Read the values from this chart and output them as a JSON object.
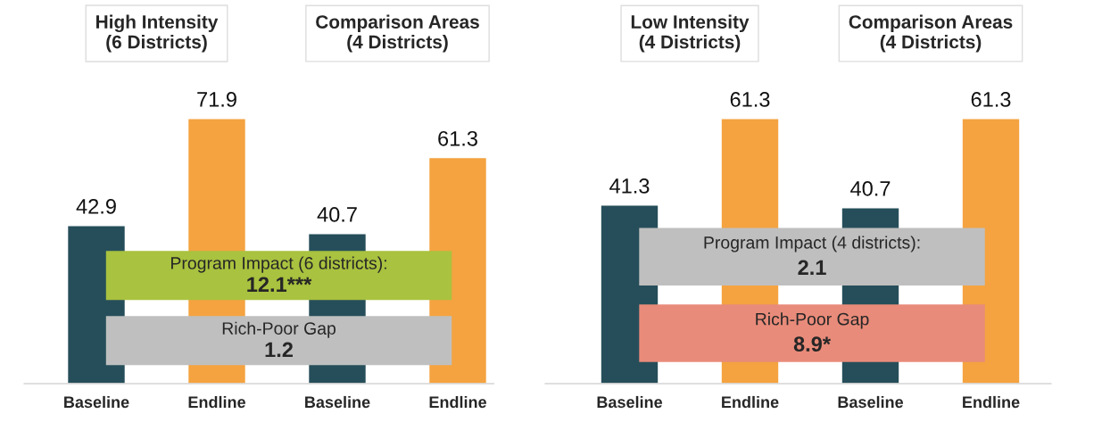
{
  "chart_data": [
    {
      "type": "bar",
      "categories": [
        "Baseline",
        "Endline",
        "Baseline",
        "Endline"
      ],
      "values": [
        42.9,
        71.9,
        40.7,
        61.3
      ],
      "colors": [
        "#264e5a",
        "#f4a340",
        "#264e5a",
        "#f4a340"
      ],
      "data_labels": true,
      "grid": false,
      "legend": false,
      "annotations": [
        "High Intensity\n(6 Districts)",
        "Comparison Areas\n(4 Districts)",
        "Program Impact (6 districts):",
        "12.1***",
        "Rich-Poor Gap",
        "1.2"
      ]
    },
    {
      "type": "bar",
      "categories": [
        "Baseline",
        "Endline",
        "Baseline",
        "Endline"
      ],
      "values": [
        41.3,
        61.3,
        40.7,
        61.3
      ],
      "colors": [
        "#264e5a",
        "#f4a340",
        "#264e5a",
        "#f4a340"
      ],
      "data_labels": true,
      "grid": false,
      "legend": false,
      "annotations": [
        "Low Intensity\n(4 Districts)",
        "Comparison Areas\n(4 Districts)",
        "Program Impact (4 districts):",
        "2.1",
        "Rich-Poor Gap",
        "8.9*"
      ]
    }
  ]
}
